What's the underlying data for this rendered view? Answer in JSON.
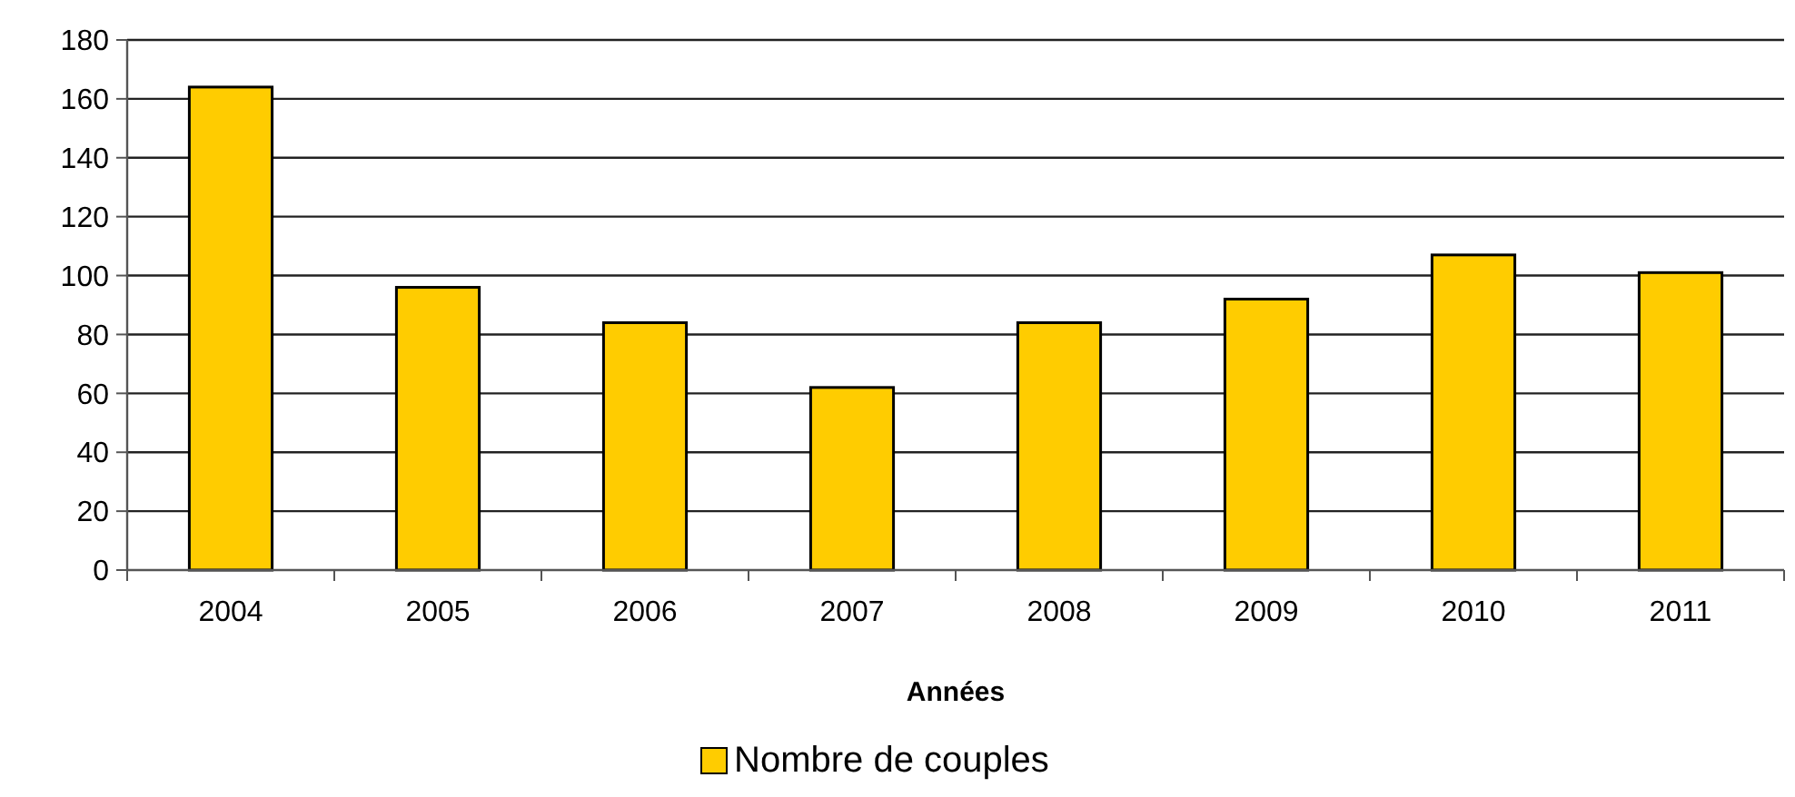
{
  "chart_data": {
    "type": "bar",
    "xlabel": "Années",
    "categories": [
      "2004",
      "2005",
      "2006",
      "2007",
      "2008",
      "2009",
      "2010",
      "2011"
    ],
    "series": [
      {
        "name": "Nombre de couples",
        "color": "#ffcc00",
        "values": [
          164,
          96,
          84,
          62,
          84,
          92,
          107,
          101
        ]
      }
    ],
    "ylim": [
      0,
      180
    ],
    "yticks": [
      0,
      20,
      40,
      60,
      80,
      100,
      120,
      140,
      160,
      180
    ],
    "grid": "y",
    "legend": "bottom"
  }
}
